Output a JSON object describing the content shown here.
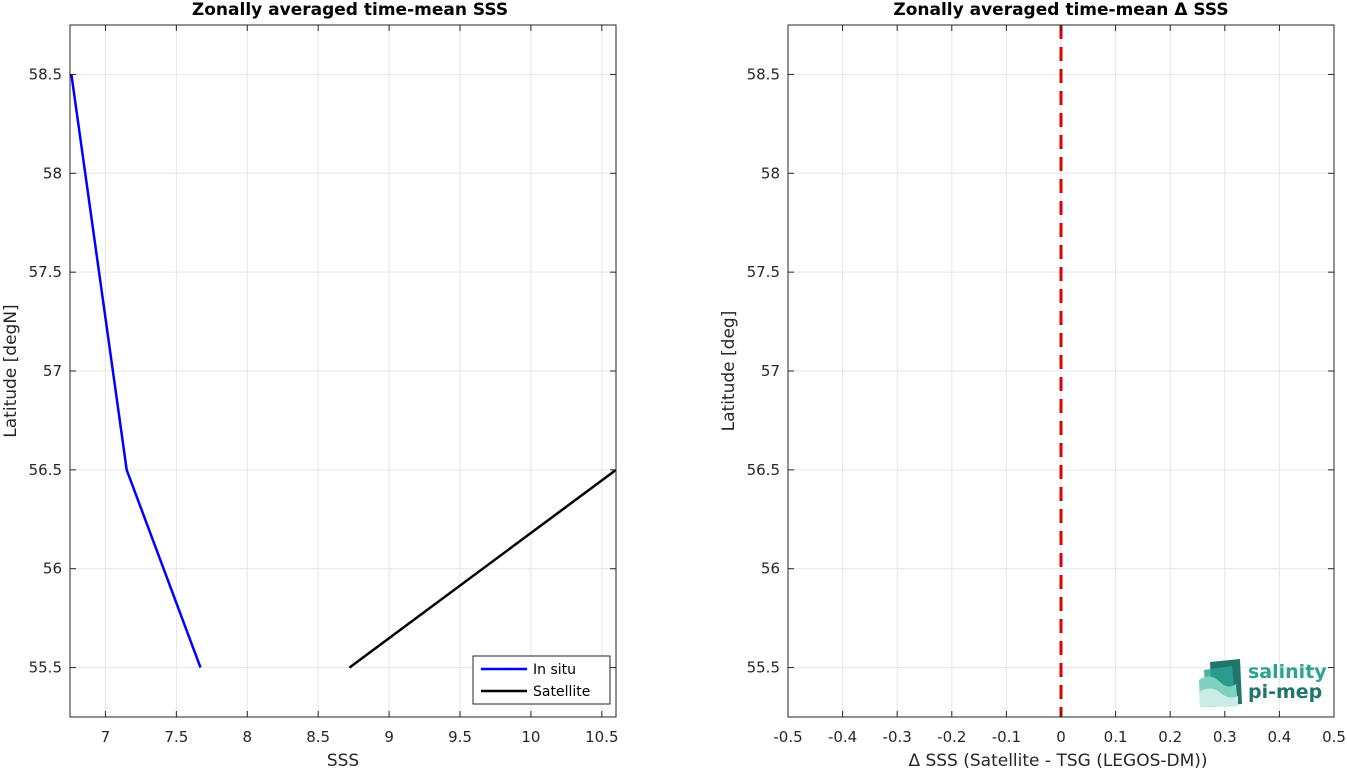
{
  "colors": {
    "in_situ": "#0000ff",
    "satellite": "#000000",
    "zero_line": "#e00000",
    "grid": "#e6e6e6",
    "logo_teal": "#2aa393",
    "logo_dark": "#21756a"
  },
  "logo": {
    "line1": "salinity",
    "line2": "pi-mep",
    "icon": "salinity-wave-icon"
  },
  "chart_data": [
    {
      "type": "line",
      "title": "Zonally averaged time-mean SSS",
      "xlabel": "SSS",
      "ylabel": "Latitude [degN]",
      "xlim": [
        6.75,
        10.6
      ],
      "ylim": [
        55.25,
        58.75
      ],
      "xticks": [
        7,
        7.5,
        8,
        8.5,
        9,
        9.5,
        10,
        10.5
      ],
      "xtick_labels": [
        "7",
        "7.5",
        "8",
        "8.5",
        "9",
        "9.5",
        "10",
        "10.5"
      ],
      "yticks": [
        55.5,
        56,
        56.5,
        57,
        57.5,
        58,
        58.5
      ],
      "ytick_labels": [
        "55.5",
        "56",
        "56.5",
        "57",
        "57.5",
        "58",
        "58.5"
      ],
      "grid": true,
      "legend": "bottom-right",
      "series": [
        {
          "name": "In situ",
          "color": "#0000ff",
          "x": [
            6.76,
            7.15,
            7.67
          ],
          "y": [
            58.5,
            56.5,
            55.5
          ]
        },
        {
          "name": "Satellite",
          "color": "#000000",
          "x": [
            8.72,
            10.6
          ],
          "y": [
            55.5,
            56.5
          ]
        }
      ]
    },
    {
      "type": "line",
      "title": "Zonally averaged time-mean Δ SSS",
      "xlabel": "Δ SSS (Satellite - TSG (LEGOS-DM))",
      "ylabel": "Latitude [deg]",
      "xlim": [
        -0.5,
        0.5
      ],
      "ylim": [
        55.25,
        58.75
      ],
      "xticks": [
        -0.5,
        -0.4,
        -0.3,
        -0.2,
        -0.1,
        0,
        0.1,
        0.2,
        0.3,
        0.4,
        0.5
      ],
      "xtick_labels": [
        "-0.5",
        "-0.4",
        "-0.3",
        "-0.2",
        "-0.1",
        "0",
        "0.1",
        "0.2",
        "0.3",
        "0.4",
        "0.5"
      ],
      "yticks": [
        55.5,
        56,
        56.5,
        57,
        57.5,
        58,
        58.5
      ],
      "ytick_labels": [
        "55.5",
        "56",
        "56.5",
        "57",
        "57.5",
        "58",
        "58.5"
      ],
      "grid": true,
      "reference_line": {
        "x": 0,
        "style": "dashed",
        "color": "#e00000"
      },
      "series": []
    }
  ]
}
